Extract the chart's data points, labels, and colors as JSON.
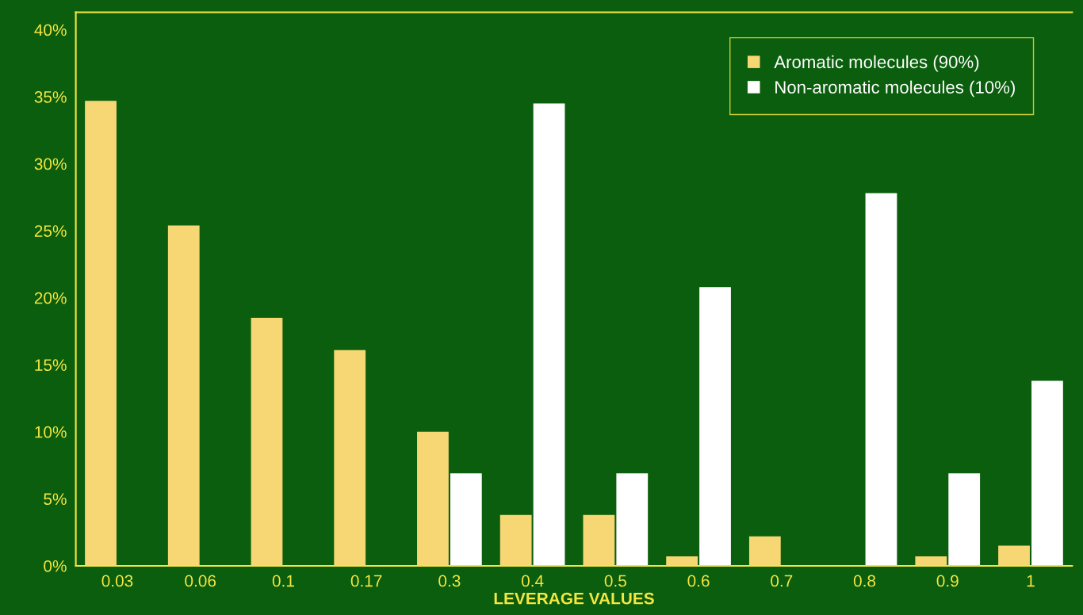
{
  "chart_data": {
    "type": "bar",
    "xlabel": "LEVERAGE VALUES",
    "categories": [
      "0.03",
      "0.06",
      "0.1",
      "0.17",
      "0.3",
      "0.4",
      "0.5",
      "0.6",
      "0.7",
      "0.8",
      "0.9",
      "1"
    ],
    "series": [
      {
        "name": "Aromatic molecules (90%)",
        "color": "#f7d774",
        "values": [
          34.7,
          25.4,
          18.5,
          16.1,
          10.0,
          3.8,
          3.8,
          0.7,
          2.2,
          0,
          0.7,
          1.5
        ]
      },
      {
        "name": "Non-aromatic molecules (10%)",
        "color": "#ffffff",
        "values": [
          0,
          0,
          0,
          0,
          6.9,
          34.5,
          6.9,
          20.8,
          0,
          27.8,
          6.9,
          13.8
        ]
      }
    ],
    "ylim": [
      0,
      41.3
    ],
    "yticks": [
      {
        "value": 0,
        "label": "0%"
      },
      {
        "value": 5,
        "label": "5%"
      },
      {
        "value": 10,
        "label": "10%"
      },
      {
        "value": 15,
        "label": "15%"
      },
      {
        "value": 20,
        "label": "20%"
      },
      {
        "value": 25,
        "label": "25%"
      },
      {
        "value": 30,
        "label": "30%"
      },
      {
        "value": 35,
        "label": "35%"
      },
      {
        "value": 40,
        "label": "40%"
      }
    ],
    "grid": false,
    "legend": "top right"
  }
}
